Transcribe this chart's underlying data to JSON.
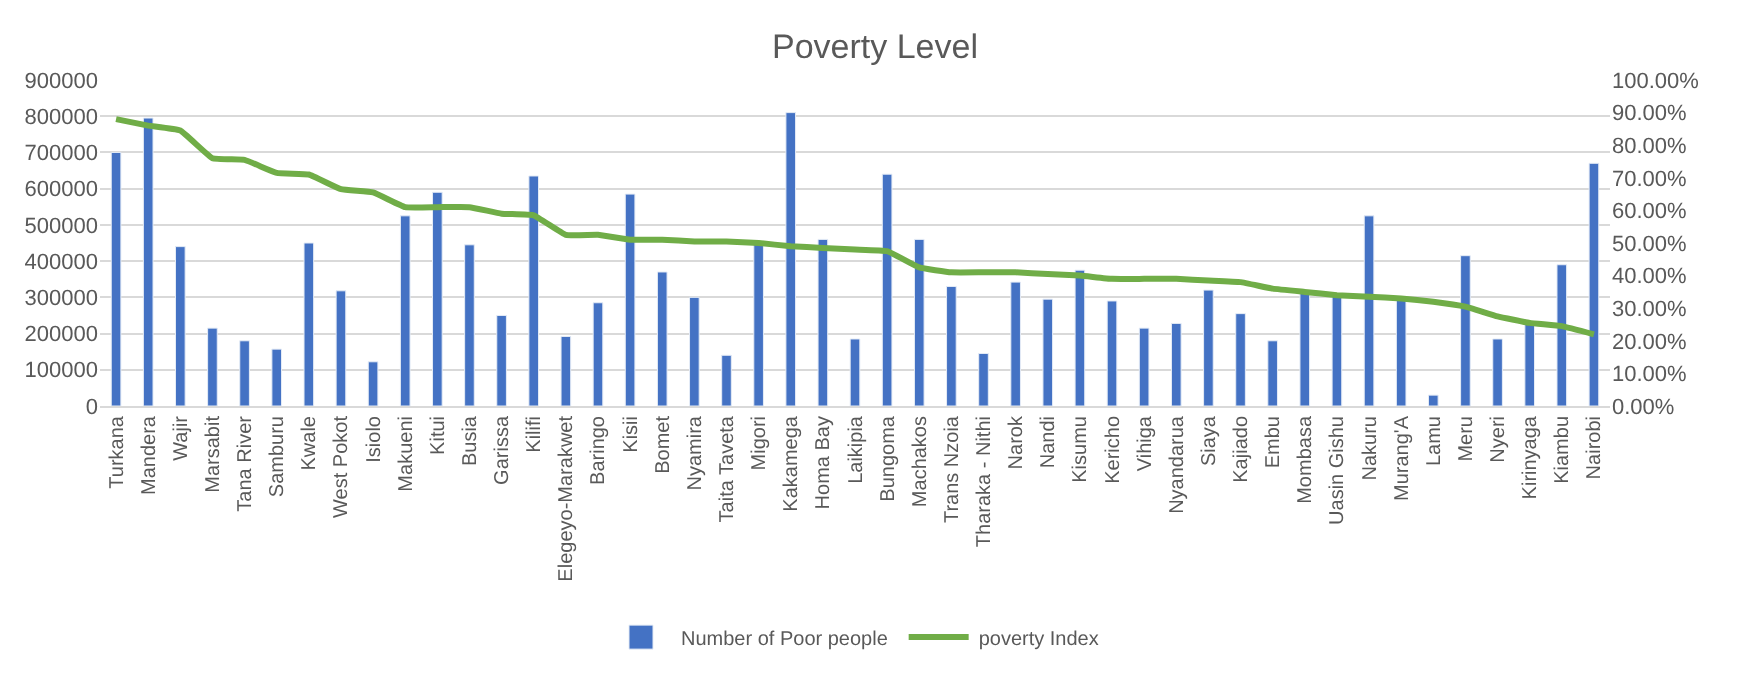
{
  "chart_data": {
    "type": "bar",
    "title": "Poverty Level",
    "categories": [
      "Turkana",
      "Mandera",
      "Wajir",
      "Marsabit",
      "Tana River",
      "Samburu",
      "Kwale",
      "West Pokot",
      "Isiolo",
      "Makueni",
      "Kitui",
      "Busia",
      "Garissa",
      "Kilifi",
      "Elegeyo-Marakwet",
      "Baringo",
      "Kisii",
      "Bomet",
      "Nyamira",
      "Taita Taveta",
      "Migori",
      "Kakamega",
      "Homa Bay",
      "Laikipia",
      "Bungoma",
      "Machakos",
      "Trans Nzoia",
      "Tharaka - Nithi",
      "Narok",
      "Nandi",
      "Kisumu",
      "Kericho",
      "Vihiga",
      "Nyandarua",
      "Siaya",
      "Kajiado",
      "Embu",
      "Mombasa",
      "Uasin Gishu",
      "Nakuru",
      "Murang'A",
      "Lamu",
      "Meru",
      "Nyeri",
      "Kirinyaga",
      "Kiambu",
      "Nairobi"
    ],
    "series": [
      {
        "name": "Number of Poor people",
        "color": "#4472c4",
        "values": [
          700000,
          795000,
          440000,
          215000,
          180000,
          157000,
          450000,
          318000,
          122000,
          525000,
          590000,
          445000,
          250000,
          635000,
          192000,
          285000,
          585000,
          370000,
          300000,
          140000,
          450000,
          810000,
          460000,
          185000,
          640000,
          460000,
          330000,
          145000,
          342000,
          295000,
          375000,
          290000,
          215000,
          228000,
          320000,
          255000,
          180000,
          315000,
          305000,
          525000,
          300000,
          30000,
          415000,
          185000,
          225000,
          390000,
          670000
        ]
      },
      {
        "name": "poverty Index",
        "type": "line",
        "axis": "y2",
        "color": "#70ad47",
        "values": [
          88,
          86,
          84.5,
          76,
          75.5,
          71.5,
          71,
          66.5,
          65.5,
          61,
          61,
          61,
          59,
          58.5,
          52.5,
          52.5,
          51,
          51,
          50.5,
          50.5,
          50,
          49,
          48.5,
          48,
          47.5,
          42.5,
          41,
          41,
          41,
          40.5,
          40,
          39,
          39,
          39,
          38.5,
          38,
          36,
          35,
          34,
          33.5,
          33,
          32,
          30.5,
          27.5,
          25.5,
          24.5,
          22
        ]
      }
    ],
    "ylim": [
      0,
      900000
    ],
    "yticks": [
      0,
      100000,
      200000,
      300000,
      400000,
      500000,
      600000,
      700000,
      800000,
      900000
    ],
    "y2lim": [
      0,
      100
    ],
    "y2ticks": [
      {
        "value": 0,
        "label": "0.00%"
      },
      {
        "value": 10,
        "label": "10.00%"
      },
      {
        "value": 20,
        "label": "20.00%"
      },
      {
        "value": 30,
        "label": "30.00%"
      },
      {
        "value": 40,
        "label": "40.00%"
      },
      {
        "value": 50,
        "label": "50.00%"
      },
      {
        "value": 60,
        "label": "60.00%"
      },
      {
        "value": 70,
        "label": "70.00%"
      },
      {
        "value": 80,
        "label": "80.00%"
      },
      {
        "value": 90,
        "label": "90.00%"
      },
      {
        "value": 100,
        "label": "100.00%"
      }
    ],
    "grid": "y",
    "legend": "bottom",
    "marker": "none"
  }
}
